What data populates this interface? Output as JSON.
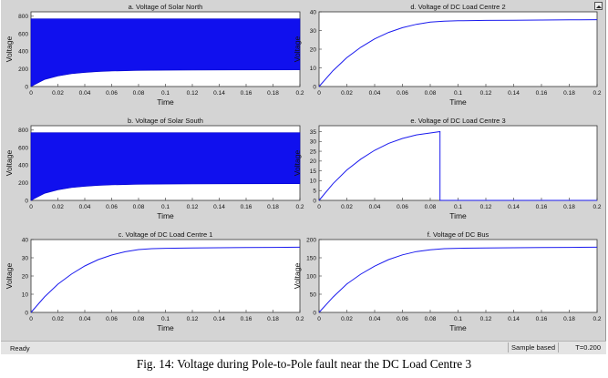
{
  "status": {
    "ready": "Ready",
    "mode": "Sample based",
    "time": "T=0.200"
  },
  "caption": "Fig. 14: Voltage during Pole-to-Pole fault near the DC Load Centre 3",
  "chart_data": [
    {
      "type": "line",
      "title": "a. Voltage of Solar North",
      "xlabel": "Time",
      "ylabel": "Voltage",
      "xlim": [
        0,
        0.2
      ],
      "ylim": [
        0,
        850
      ],
      "xticks": [
        "0",
        "0.02",
        "0.04",
        "0.06",
        "0.08",
        "0.1",
        "0.12",
        "0.14",
        "0.16",
        "0.18",
        "0.2"
      ],
      "yticks": [
        0,
        200,
        400,
        600,
        800
      ],
      "fill": true,
      "series": [
        {
          "x": [
            0,
            0.005,
            0.01,
            0.02,
            0.03,
            0.04,
            0.05,
            0.06,
            0.08,
            0.1,
            0.12,
            0.15,
            0.2
          ],
          "lower": [
            0,
            40,
            80,
            120,
            145,
            160,
            170,
            176,
            183,
            186,
            188,
            189,
            190
          ],
          "upper": [
            770,
            770,
            770,
            770,
            770,
            770,
            770,
            770,
            770,
            770,
            770,
            770,
            770
          ]
        }
      ]
    },
    {
      "type": "line",
      "title": "b. Voltage of Solar South",
      "xlabel": "Time",
      "ylabel": "Voltage",
      "xlim": [
        0,
        0.2
      ],
      "ylim": [
        0,
        850
      ],
      "xticks": [
        "0",
        "0.02",
        "0.04",
        "0.06",
        "0.08",
        "0.1",
        "0.12",
        "0.14",
        "0.16",
        "0.18",
        "0.2"
      ],
      "yticks": [
        0,
        200,
        400,
        600,
        800
      ],
      "fill": true,
      "series": [
        {
          "x": [
            0,
            0.005,
            0.01,
            0.02,
            0.03,
            0.04,
            0.05,
            0.06,
            0.08,
            0.1,
            0.12,
            0.15,
            0.2
          ],
          "lower": [
            0,
            40,
            80,
            120,
            145,
            160,
            170,
            176,
            183,
            186,
            188,
            189,
            190
          ],
          "upper": [
            770,
            770,
            770,
            770,
            770,
            770,
            770,
            770,
            770,
            770,
            770,
            770,
            770
          ]
        }
      ]
    },
    {
      "type": "line",
      "title": "c. Voltage of DC Load Centre 1",
      "xlabel": "Time",
      "ylabel": "Voltage",
      "xlim": [
        0,
        0.2
      ],
      "ylim": [
        0,
        40
      ],
      "xticks": [
        "0",
        "0.02",
        "0.04",
        "0.06",
        "0.08",
        "0.1",
        "0.12",
        "0.14",
        "0.16",
        "0.18",
        "0.2"
      ],
      "yticks": [
        0,
        10,
        20,
        30,
        40
      ],
      "series": [
        {
          "x": [
            0,
            0.01,
            0.02,
            0.03,
            0.04,
            0.05,
            0.06,
            0.07,
            0.08,
            0.09,
            0.1,
            0.12,
            0.14,
            0.16,
            0.18,
            0.2
          ],
          "y": [
            0,
            8.5,
            15.5,
            21,
            25.5,
            29,
            31.5,
            33.3,
            34.5,
            35,
            35.2,
            35.4,
            35.5,
            35.6,
            35.7,
            35.8
          ]
        }
      ]
    },
    {
      "type": "line",
      "title": "d. Voltage of DC Load Centre 2",
      "xlabel": "Time",
      "ylabel": "Voltage",
      "xlim": [
        0,
        0.2
      ],
      "ylim": [
        0,
        40
      ],
      "xticks": [
        "0",
        "0.02",
        "0.04",
        "0.06",
        "0.08",
        "0.1",
        "0.12",
        "0.14",
        "0.16",
        "0.18",
        "0.2"
      ],
      "yticks": [
        0,
        10,
        20,
        30,
        40
      ],
      "series": [
        {
          "x": [
            0,
            0.01,
            0.02,
            0.03,
            0.04,
            0.05,
            0.06,
            0.07,
            0.08,
            0.09,
            0.1,
            0.12,
            0.14,
            0.16,
            0.18,
            0.2
          ],
          "y": [
            0,
            8.5,
            15.5,
            21,
            25.5,
            29,
            31.5,
            33.3,
            34.5,
            35,
            35.2,
            35.4,
            35.5,
            35.6,
            35.7,
            35.8
          ]
        }
      ]
    },
    {
      "type": "line",
      "title": "e. Voltage of DC Load Centre 3",
      "xlabel": "Time",
      "ylabel": "Voltage",
      "xlim": [
        0,
        0.2
      ],
      "ylim": [
        0,
        38
      ],
      "xticks": [
        "0",
        "0.02",
        "0.04",
        "0.06",
        "0.08",
        "0.1",
        "0.12",
        "0.14",
        "0.16",
        "0.18",
        "0.2"
      ],
      "yticks": [
        0,
        5,
        10,
        15,
        20,
        25,
        30,
        35
      ],
      "series": [
        {
          "x": [
            0,
            0.01,
            0.02,
            0.03,
            0.04,
            0.05,
            0.06,
            0.07,
            0.08,
            0.087,
            0.087,
            0.1,
            0.15,
            0.2
          ],
          "y": [
            0,
            8.5,
            15.5,
            21,
            25.5,
            29,
            31.5,
            33.3,
            34.3,
            35,
            0,
            0,
            0,
            0
          ]
        }
      ]
    },
    {
      "type": "line",
      "title": "f. Voltage of DC Bus",
      "xlabel": "Time",
      "ylabel": "Voltage",
      "xlim": [
        0,
        0.2
      ],
      "ylim": [
        0,
        200
      ],
      "xticks": [
        "0",
        "0.02",
        "0.04",
        "0.06",
        "0.08",
        "0.1",
        "0.12",
        "0.14",
        "0.16",
        "0.18",
        "0.2"
      ],
      "yticks": [
        0,
        50,
        100,
        150,
        200
      ],
      "series": [
        {
          "x": [
            0,
            0.01,
            0.02,
            0.03,
            0.04,
            0.05,
            0.06,
            0.07,
            0.08,
            0.09,
            0.1,
            0.12,
            0.14,
            0.16,
            0.18,
            0.2
          ],
          "y": [
            0,
            42,
            78,
            105,
            127,
            145,
            158,
            167,
            172,
            175,
            176,
            177,
            177.5,
            178,
            178.5,
            179
          ]
        }
      ]
    }
  ]
}
